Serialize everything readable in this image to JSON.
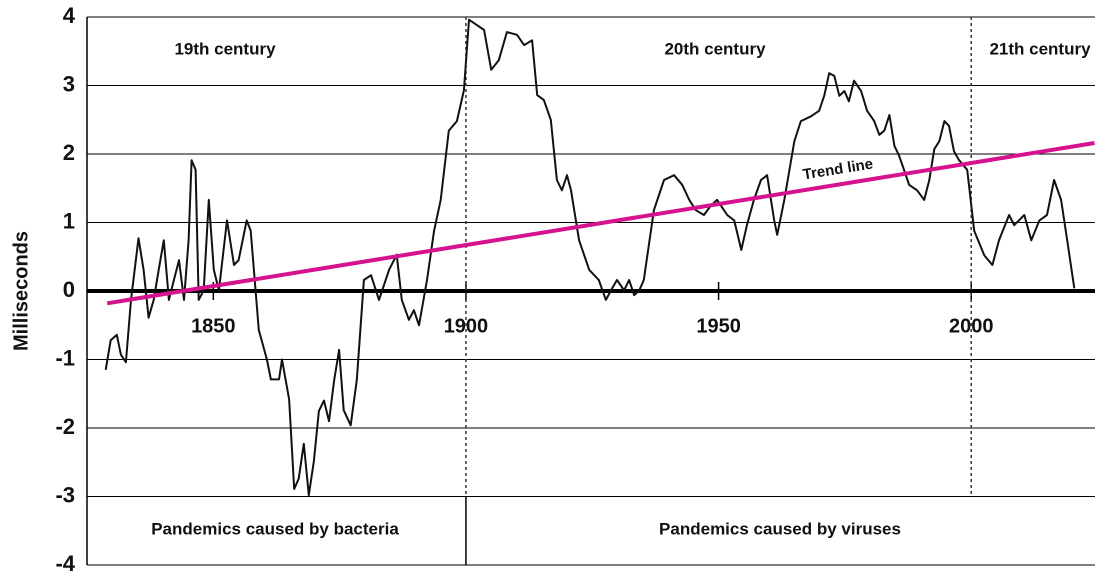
{
  "chart_data": {
    "type": "line",
    "y_label": "Milliseconds",
    "xlim": [
      1825,
      2024.5
    ],
    "ylim": [
      -4,
      4
    ],
    "xticks": [
      1850,
      1900,
      1950,
      2000
    ],
    "yticks": [
      -4,
      -3,
      -2,
      -1,
      0,
      1,
      2,
      3,
      4
    ],
    "grid": true,
    "dividers": [
      1900,
      2000
    ],
    "era_labels": [
      "19th century",
      "20th century",
      "21th century"
    ],
    "trend_label": "Trend line",
    "region_labels": [
      "Pandemics caused by bacteria",
      "Pandemics caused by viruses"
    ],
    "series": [
      {
        "color": "#111111",
        "x": [
          1828.7,
          1829.7,
          1830.9,
          1831.7,
          1832.7,
          1833.7,
          1835.2,
          1836.2,
          1837.2,
          1838.2,
          1839.2,
          1840.2,
          1841.2,
          1842.2,
          1843.2,
          1844.2,
          1845.1,
          1845.7,
          1846.5,
          1847.1,
          1848.1,
          1849.1,
          1850.1,
          1851.1,
          1852.7,
          1854.1,
          1855.0,
          1856.6,
          1857.4,
          1859.0,
          1860.6,
          1861.4,
          1863.0,
          1863.6,
          1865.0,
          1866.0,
          1866.9,
          1867.9,
          1868.9,
          1869.9,
          1870.9,
          1871.9,
          1872.9,
          1873.9,
          1874.9,
          1875.8,
          1877.2,
          1878.4,
          1879.8,
          1881.2,
          1882.8,
          1884.8,
          1886.3,
          1887.3,
          1888.7,
          1889.7,
          1890.7,
          1892.3,
          1893.7,
          1895.0,
          1896.6,
          1898.2,
          1899.6,
          1900.6,
          1902.2,
          1903.6,
          1905.0,
          1906.5,
          1908.1,
          1910.1,
          1911.5,
          1913.1,
          1914.1,
          1915.4,
          1916.8,
          1918.0,
          1919.0,
          1920.0,
          1920.8,
          1922.4,
          1924.4,
          1926.3,
          1927.7,
          1928.7,
          1929.9,
          1931.3,
          1932.3,
          1933.3,
          1934.3,
          1935.2,
          1937.2,
          1939.2,
          1941.2,
          1942.8,
          1944.2,
          1945.5,
          1947.1,
          1948.5,
          1949.7,
          1951.7,
          1953.1,
          1954.5,
          1955.6,
          1957.0,
          1958.4,
          1959.6,
          1961.0,
          1961.6,
          1963.0,
          1965.0,
          1966.3,
          1968.3,
          1969.9,
          1970.9,
          1971.9,
          1972.9,
          1973.9,
          1974.9,
          1975.8,
          1976.8,
          1978.2,
          1979.4,
          1980.8,
          1981.8,
          1982.8,
          1983.8,
          1984.8,
          1985.7,
          1986.7,
          1987.7,
          1989.3,
          1990.7,
          1991.7,
          1992.7,
          1993.7,
          1994.7,
          1995.6,
          1996.6,
          1997.6,
          1999.2,
          2000.6,
          2002.6,
          2004.2,
          2005.5,
          2007.5,
          2008.5,
          2010.5,
          2011.9,
          2013.5,
          2015.0,
          2016.4,
          2017.8,
          2019.0,
          2020.4
        ],
        "values": [
          -1.15,
          -0.72,
          -0.64,
          -0.93,
          -1.04,
          -0.13,
          0.77,
          0.31,
          -0.39,
          -0.13,
          0.31,
          0.74,
          -0.13,
          0.16,
          0.45,
          -0.13,
          0.74,
          1.91,
          1.77,
          -0.13,
          0.01,
          1.33,
          0.31,
          0.01,
          1.03,
          0.38,
          0.45,
          1.03,
          0.88,
          -0.57,
          -1.0,
          -1.29,
          -1.29,
          -1.0,
          -1.58,
          -2.89,
          -2.74,
          -2.23,
          -2.98,
          -2.48,
          -1.75,
          -1.6,
          -1.9,
          -1.31,
          -0.86,
          -1.74,
          -1.96,
          -1.3,
          0.16,
          0.23,
          -0.13,
          0.31,
          0.53,
          -0.13,
          -0.42,
          -0.28,
          -0.5,
          0.16,
          0.88,
          1.33,
          2.34,
          2.48,
          2.93,
          3.96,
          3.88,
          3.81,
          3.23,
          3.37,
          3.78,
          3.74,
          3.59,
          3.66,
          2.86,
          2.79,
          2.5,
          1.62,
          1.47,
          1.69,
          1.47,
          0.74,
          0.31,
          0.16,
          -0.13,
          0.01,
          0.16,
          0.01,
          0.16,
          -0.06,
          0.01,
          0.16,
          1.18,
          1.62,
          1.69,
          1.55,
          1.33,
          1.18,
          1.11,
          1.25,
          1.33,
          1.11,
          1.03,
          0.6,
          0.96,
          1.33,
          1.62,
          1.69,
          1.03,
          0.82,
          1.33,
          2.19,
          2.48,
          2.55,
          2.63,
          2.85,
          3.18,
          3.14,
          2.85,
          2.92,
          2.77,
          3.07,
          2.92,
          2.63,
          2.48,
          2.28,
          2.34,
          2.57,
          2.12,
          1.98,
          1.77,
          1.55,
          1.47,
          1.33,
          1.62,
          2.07,
          2.19,
          2.48,
          2.41,
          2.04,
          1.91,
          1.77,
          0.88,
          0.52,
          0.38,
          0.74,
          1.11,
          0.96,
          1.11,
          0.74,
          1.03,
          1.11,
          1.62,
          1.33,
          0.74,
          0.04
        ]
      },
      {
        "color": "#d6138f",
        "x": [
          1829,
          2024.4
        ],
        "values": [
          -0.18,
          2.16
        ]
      }
    ]
  }
}
